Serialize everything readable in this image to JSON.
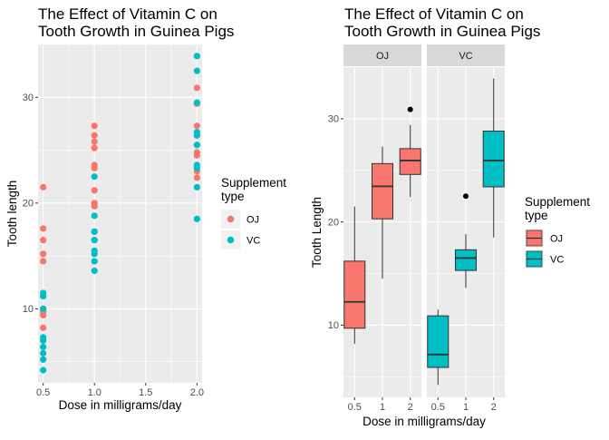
{
  "chart_data": [
    {
      "type": "scatter",
      "title_line1": "The Effect of Vitamin C on",
      "title_line2": "Tooth Growth in Guinea Pigs",
      "xlabel": "Dose in milligrams/day",
      "ylabel": "Tooth length",
      "xlim": [
        0.45,
        2.05
      ],
      "ylim": [
        3,
        35
      ],
      "xticks": [
        0.5,
        1.0,
        1.5,
        2.0
      ],
      "xtick_labels": [
        "0.5",
        "1.0",
        "1.5",
        "2.0"
      ],
      "yticks": [
        10,
        20,
        30
      ],
      "ytick_labels": [
        "10",
        "20",
        "30"
      ],
      "grid": true,
      "legend": {
        "title_line1": "Supplement",
        "title_line2": "type",
        "placement": "right",
        "items": [
          "OJ",
          "VC"
        ]
      },
      "series": [
        {
          "name": "OJ",
          "color": "#F8766D",
          "points": [
            [
              0.5,
              15.2
            ],
            [
              0.5,
              21.5
            ],
            [
              0.5,
              17.6
            ],
            [
              0.5,
              9.7
            ],
            [
              0.5,
              14.5
            ],
            [
              0.5,
              10.0
            ],
            [
              0.5,
              8.2
            ],
            [
              0.5,
              9.4
            ],
            [
              0.5,
              16.5
            ],
            [
              0.5,
              9.7
            ],
            [
              1.0,
              19.7
            ],
            [
              1.0,
              23.3
            ],
            [
              1.0,
              23.6
            ],
            [
              1.0,
              26.4
            ],
            [
              1.0,
              20.0
            ],
            [
              1.0,
              25.2
            ],
            [
              1.0,
              25.8
            ],
            [
              1.0,
              21.2
            ],
            [
              1.0,
              14.5
            ],
            [
              1.0,
              27.3
            ],
            [
              2.0,
              25.5
            ],
            [
              2.0,
              26.4
            ],
            [
              2.0,
              22.4
            ],
            [
              2.0,
              24.5
            ],
            [
              2.0,
              24.8
            ],
            [
              2.0,
              30.9
            ],
            [
              2.0,
              26.4
            ],
            [
              2.0,
              27.3
            ],
            [
              2.0,
              29.4
            ],
            [
              2.0,
              23.0
            ]
          ]
        },
        {
          "name": "VC",
          "color": "#00BFC4",
          "points": [
            [
              0.5,
              4.2
            ],
            [
              0.5,
              11.5
            ],
            [
              0.5,
              7.3
            ],
            [
              0.5,
              5.8
            ],
            [
              0.5,
              6.4
            ],
            [
              0.5,
              10.0
            ],
            [
              0.5,
              11.2
            ],
            [
              0.5,
              11.2
            ],
            [
              0.5,
              5.2
            ],
            [
              0.5,
              7.0
            ],
            [
              1.0,
              16.5
            ],
            [
              1.0,
              16.5
            ],
            [
              1.0,
              15.2
            ],
            [
              1.0,
              17.3
            ],
            [
              1.0,
              22.5
            ],
            [
              1.0,
              17.3
            ],
            [
              1.0,
              13.6
            ],
            [
              1.0,
              14.5
            ],
            [
              1.0,
              18.8
            ],
            [
              1.0,
              15.5
            ],
            [
              2.0,
              23.6
            ],
            [
              2.0,
              18.5
            ],
            [
              2.0,
              33.9
            ],
            [
              2.0,
              25.5
            ],
            [
              2.0,
              26.4
            ],
            [
              2.0,
              32.5
            ],
            [
              2.0,
              26.7
            ],
            [
              2.0,
              21.5
            ],
            [
              2.0,
              23.3
            ],
            [
              2.0,
              29.5
            ]
          ]
        }
      ]
    },
    {
      "type": "box",
      "title_line1": "The Effect of Vitamin C on",
      "title_line2": "Tooth Growth in Guinea Pigs",
      "xlabel": "Dose in milligrams/day",
      "ylabel": "Tooth Length",
      "ylim": [
        3,
        35
      ],
      "yticks": [
        10,
        20,
        30
      ],
      "ytick_labels": [
        "10",
        "20",
        "30"
      ],
      "categories": [
        "0.5",
        "1",
        "2"
      ],
      "grid": true,
      "legend": {
        "title_line1": "Supplement",
        "title_line2": "type",
        "placement": "right",
        "items": [
          "OJ",
          "VC"
        ]
      },
      "facets": [
        {
          "label": "OJ",
          "color": "#F8766D",
          "boxes": [
            {
              "category": "0.5",
              "lower_whisker": 8.2,
              "q1": 9.7,
              "median": 12.25,
              "q3": 16.2,
              "upper_whisker": 21.5,
              "outliers": []
            },
            {
              "category": "1",
              "lower_whisker": 14.5,
              "q1": 20.3,
              "median": 23.45,
              "q3": 25.65,
              "upper_whisker": 27.3,
              "outliers": []
            },
            {
              "category": "2",
              "lower_whisker": 22.4,
              "q1": 24.6,
              "median": 25.95,
              "q3": 27.1,
              "upper_whisker": 29.4,
              "outliers": [
                30.9
              ]
            }
          ]
        },
        {
          "label": "VC",
          "color": "#00BFC4",
          "boxes": [
            {
              "category": "0.5",
              "lower_whisker": 4.2,
              "q1": 5.9,
              "median": 7.15,
              "q3": 10.9,
              "upper_whisker": 11.5,
              "outliers": []
            },
            {
              "category": "1",
              "lower_whisker": 13.6,
              "q1": 15.3,
              "median": 16.5,
              "q3": 17.3,
              "upper_whisker": 18.8,
              "outliers": [
                22.5
              ]
            },
            {
              "category": "2",
              "lower_whisker": 18.5,
              "q1": 23.4,
              "median": 25.95,
              "q3": 28.8,
              "upper_whisker": 33.9,
              "outliers": []
            }
          ]
        }
      ]
    }
  ]
}
